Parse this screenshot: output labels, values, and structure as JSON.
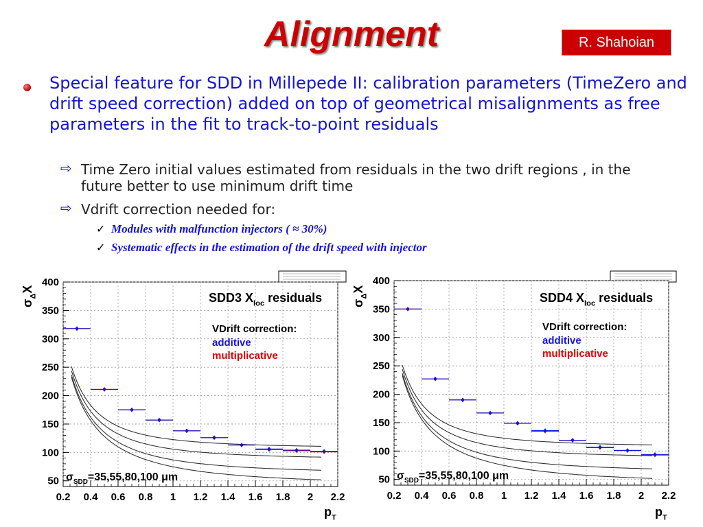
{
  "slide": {
    "title": "Alignment",
    "author": "R. Shahoian",
    "bullet": "Special feature for SDD in Millepede II: calibration parameters (TimeZero and drift speed correction) added on top of geometrical misalignments as free parameters in the fit to track-to-point residuals",
    "sub_bullets": [
      "Time Zero initial values estimated from residuals in the two drift regions , in the future better to use minimum drift time",
      "Vdrift correction needed for:"
    ],
    "sub_sub_bullets": [
      "Modules with malfunction injectors ( ≈ 30%)",
      "Systematic effects in the estimation of the drift speed with injector"
    ],
    "colors": {
      "title": "#cc0000",
      "text": "#1414d8",
      "additive": "#1414d8",
      "multiplicative": "#dd0000"
    }
  },
  "chart_data": [
    {
      "type": "scatter",
      "title_main": "SDD3 X",
      "title_sub": "loc",
      "title_suffix": "residuals",
      "ylabel_main": "σ",
      "ylabel_sub": "Δ",
      "ylabel_suffix": "X",
      "xlabel_main": "p",
      "xlabel_sub": "T",
      "legend_title": "VDrift correction:",
      "legend_additive": "additive",
      "legend_multiplicative": "multiplicative",
      "curve_label_main": "σ",
      "curve_label_sub": "SDD",
      "curve_label_suffix": "=35,55,80,100 μm",
      "xlim": [
        0.2,
        2.2
      ],
      "ylim": [
        40,
        400
      ],
      "xticks": [
        "0.2",
        "0.4",
        "0.6",
        "0.8",
        "1",
        "1.2",
        "1.4",
        "1.6",
        "1.8",
        "2",
        "2.2"
      ],
      "yticks": [
        "50",
        "100",
        "150",
        "200",
        "250",
        "300",
        "350",
        "400"
      ],
      "x": [
        0.3,
        0.5,
        0.7,
        0.9,
        1.1,
        1.3,
        1.5,
        1.7,
        1.9,
        2.1
      ],
      "xerr": 0.1,
      "series": [
        {
          "name": "additive",
          "color": "#1414d8",
          "values": [
            318,
            211,
            175,
            157,
            138,
            126,
            113,
            106,
            104,
            102
          ]
        },
        {
          "name": "multiplicative",
          "color": "#dd0000",
          "values": [
            318,
            211,
            175,
            157,
            138,
            126,
            113,
            105,
            103,
            101
          ]
        }
      ],
      "curve_sigmas": [
        35,
        55,
        80,
        100
      ],
      "grid": true
    },
    {
      "type": "scatter",
      "title_main": "SDD4 X",
      "title_sub": "loc",
      "title_suffix": "residuals",
      "ylabel_main": "σ",
      "ylabel_sub": "Δ",
      "ylabel_suffix": "X",
      "xlabel_main": "p",
      "xlabel_sub": "T",
      "legend_title": "VDrift correction:",
      "legend_additive": "additive",
      "legend_multiplicative": "multiplicative",
      "curve_label_main": "σ",
      "curve_label_sub": "SDD",
      "curve_label_suffix": "=35,55,80,100 μm",
      "xlim": [
        0.2,
        2.2
      ],
      "ylim": [
        40,
        400
      ],
      "xticks": [
        "0.2",
        "0.4",
        "0.6",
        "0.8",
        "1",
        "1.2",
        "1.4",
        "1.6",
        "1.8",
        "2",
        "2.2"
      ],
      "yticks": [
        "50",
        "100",
        "150",
        "200",
        "250",
        "300",
        "350",
        "400"
      ],
      "x": [
        0.3,
        0.5,
        0.7,
        0.9,
        1.1,
        1.3,
        1.5,
        1.7,
        1.9,
        2.1
      ],
      "xerr": 0.1,
      "series": [
        {
          "name": "additive",
          "color": "#1414d8",
          "values": [
            350,
            227,
            190,
            167,
            149,
            136,
            119,
            107,
            101,
            94
          ]
        },
        {
          "name": "multiplicative",
          "color": "#dd0000",
          "values": [
            350,
            227,
            190,
            167,
            149,
            135,
            119,
            106,
            101,
            93
          ]
        }
      ],
      "curve_sigmas": [
        35,
        55,
        80,
        100
      ],
      "grid": true
    }
  ]
}
